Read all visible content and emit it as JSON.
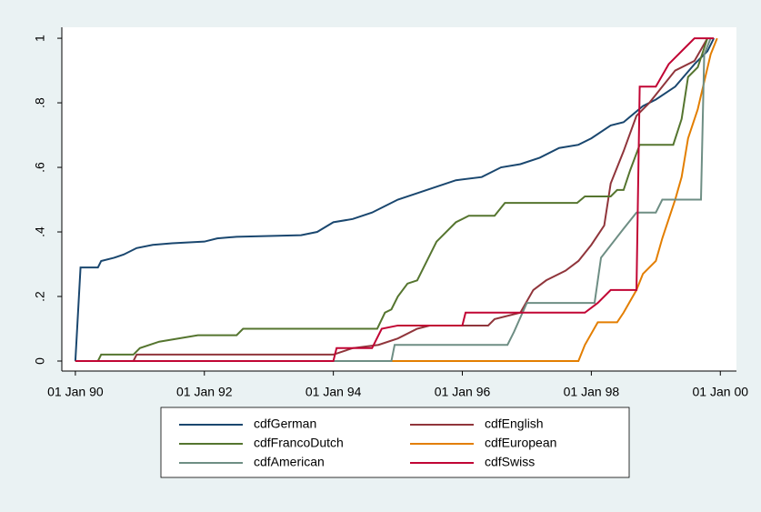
{
  "chart_data": {
    "type": "line",
    "xlim": [
      1989.79,
      2000.25
    ],
    "xticks": [
      {
        "value": 1990,
        "label": "01 Jan 90"
      },
      {
        "value": 1992,
        "label": "01 Jan 92"
      },
      {
        "value": 1994,
        "label": "01 Jan 94"
      },
      {
        "value": 1996,
        "label": "01 Jan 96"
      },
      {
        "value": 1998,
        "label": "01 Jan 98"
      },
      {
        "value": 2000,
        "label": "01 Jan 00"
      }
    ],
    "ylim": [
      -0.031,
      1.034
    ],
    "yticks": [
      {
        "value": 0,
        "label": "0"
      },
      {
        "value": 0.2,
        "label": ".2"
      },
      {
        "value": 0.4,
        "label": ".4"
      },
      {
        "value": 0.6,
        "label": ".6"
      },
      {
        "value": 0.8,
        "label": ".8"
      },
      {
        "value": 1,
        "label": "1"
      }
    ],
    "grid": false,
    "legend": "bottom",
    "series": [
      {
        "name": "cdfGerman",
        "color": "#1a476f",
        "x": [
          1990.0,
          1990.08,
          1990.35,
          1990.4,
          1990.6,
          1990.75,
          1990.95,
          1991.2,
          1991.5,
          1992.0,
          1992.2,
          1992.5,
          1993.5,
          1993.75,
          1994.0,
          1994.3,
          1994.6,
          1994.8,
          1995.0,
          1995.3,
          1995.6,
          1995.9,
          1996.3,
          1996.6,
          1996.9,
          1997.2,
          1997.5,
          1997.8,
          1998.0,
          1998.3,
          1998.5,
          1998.8,
          1999.0,
          1999.3,
          1999.6,
          1999.8,
          1999.9
        ],
        "values": [
          0,
          0.29,
          0.29,
          0.31,
          0.32,
          0.33,
          0.35,
          0.36,
          0.365,
          0.37,
          0.38,
          0.385,
          0.39,
          0.4,
          0.43,
          0.44,
          0.46,
          0.48,
          0.5,
          0.52,
          0.54,
          0.56,
          0.57,
          0.6,
          0.61,
          0.63,
          0.66,
          0.67,
          0.69,
          0.73,
          0.74,
          0.79,
          0.81,
          0.85,
          0.92,
          0.96,
          1
        ]
      },
      {
        "name": "cdfEnglish",
        "color": "#90353b",
        "x": [
          1990.0,
          1990.9,
          1990.95,
          1994.0,
          1994.3,
          1994.7,
          1995.0,
          1995.3,
          1995.5,
          1996.4,
          1996.5,
          1996.9,
          1997.1,
          1997.3,
          1997.6,
          1997.8,
          1998.0,
          1998.2,
          1998.3,
          1998.5,
          1998.7,
          1998.9,
          1999.1,
          1999.3,
          1999.6,
          1999.8
        ],
        "values": [
          0,
          0,
          0.02,
          0.02,
          0.04,
          0.05,
          0.07,
          0.1,
          0.11,
          0.11,
          0.13,
          0.15,
          0.22,
          0.25,
          0.28,
          0.31,
          0.36,
          0.42,
          0.55,
          0.65,
          0.76,
          0.8,
          0.85,
          0.9,
          0.93,
          1
        ]
      },
      {
        "name": "cdfFrancoDutch",
        "color": "#55752f",
        "x": [
          1990.0,
          1990.35,
          1990.4,
          1990.9,
          1991.0,
          1991.3,
          1991.9,
          1992.5,
          1992.6,
          1994.68,
          1994.8,
          1994.9,
          1995.0,
          1995.15,
          1995.3,
          1995.6,
          1995.9,
          1996.1,
          1996.5,
          1996.66,
          1997.78,
          1997.9,
          1998.3,
          1998.4,
          1998.5,
          1998.6,
          1998.75,
          1999.27,
          1999.4,
          1999.5,
          1999.65,
          1999.8
        ],
        "values": [
          0,
          0,
          0.02,
          0.02,
          0.04,
          0.06,
          0.08,
          0.08,
          0.1,
          0.1,
          0.15,
          0.16,
          0.2,
          0.24,
          0.25,
          0.37,
          0.43,
          0.45,
          0.45,
          0.49,
          0.49,
          0.51,
          0.51,
          0.53,
          0.53,
          0.59,
          0.67,
          0.67,
          0.75,
          0.88,
          0.91,
          1
        ]
      },
      {
        "name": "cdfEuropean",
        "color": "#e37e00",
        "x": [
          1990.0,
          1997.8,
          1997.9,
          1998.1,
          1998.4,
          1998.5,
          1998.7,
          1998.8,
          1999.0,
          1999.1,
          1999.3,
          1999.4,
          1999.5,
          1999.65,
          1999.85,
          1999.95
        ],
        "values": [
          0,
          0,
          0.05,
          0.12,
          0.12,
          0.15,
          0.22,
          0.27,
          0.31,
          0.38,
          0.5,
          0.57,
          0.69,
          0.78,
          0.95,
          1
        ]
      },
      {
        "name": "cdfAmerican",
        "color": "#6e8e84",
        "x": [
          1990.0,
          1994.9,
          1994.95,
          1996.7,
          1996.8,
          1997.0,
          1998.05,
          1998.15,
          1998.5,
          1998.7,
          1999.0,
          1999.1,
          1999.7,
          1999.75,
          1999.85
        ],
        "values": [
          0,
          0,
          0.05,
          0.05,
          0.09,
          0.18,
          0.18,
          0.32,
          0.41,
          0.46,
          0.46,
          0.5,
          0.5,
          0.95,
          1
        ]
      },
      {
        "name": "cdfSwiss",
        "color": "#c10534",
        "x": [
          1990.0,
          1994.0,
          1994.05,
          1994.6,
          1994.75,
          1995.0,
          1996.0,
          1996.05,
          1997.9,
          1998.1,
          1998.3,
          1998.7,
          1998.75,
          1999.0,
          1999.2,
          1999.4,
          1999.6,
          1999.9
        ],
        "values": [
          0,
          0,
          0.04,
          0.04,
          0.1,
          0.11,
          0.11,
          0.15,
          0.15,
          0.18,
          0.22,
          0.22,
          0.85,
          0.85,
          0.92,
          0.96,
          1,
          1
        ]
      }
    ]
  }
}
